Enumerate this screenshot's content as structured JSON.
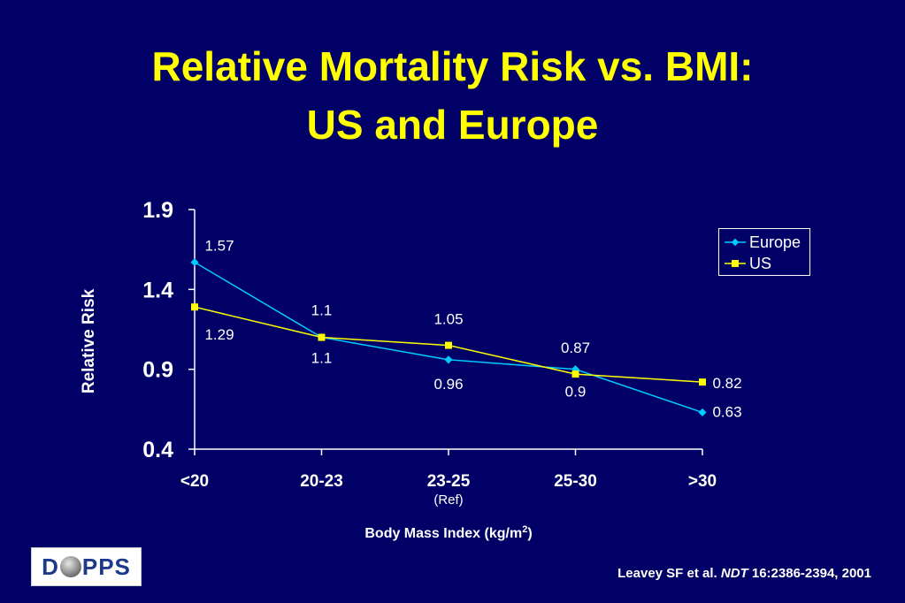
{
  "title": {
    "line1": "Relative Mortality Risk vs. BMI:",
    "line2": "US and Europe"
  },
  "chart_data": {
    "type": "line",
    "categories": [
      "<20",
      "20-23",
      "23-25",
      "25-30",
      ">30"
    ],
    "category_sublabels": [
      "",
      "",
      "(Ref)",
      "",
      ""
    ],
    "series": [
      {
        "name": "Europe",
        "values": [
          1.57,
          1.1,
          0.96,
          0.9,
          0.63
        ],
        "color": "#00ccff",
        "marker": "diamond"
      },
      {
        "name": "US",
        "values": [
          1.29,
          1.1,
          1.05,
          0.87,
          0.82
        ],
        "color": "#ffff00",
        "marker": "square"
      }
    ],
    "data_labels": {
      "Europe": [
        "1.57",
        "1.1",
        "0.96",
        "0.9",
        "0.63"
      ],
      "US": [
        "1.29",
        "1.1",
        "1.05",
        "0.87",
        "0.82"
      ]
    },
    "xlabel": "Body Mass Index (kg/m",
    "xlabel_superscript": "2",
    "xlabel_suffix": ")",
    "ylabel": "Relative Risk",
    "ylim": [
      0.4,
      1.9
    ],
    "yticks": [
      "0.4",
      "0.9",
      "1.4",
      "1.9"
    ],
    "grid": false,
    "legend_position": "top-right"
  },
  "logo": {
    "left": "D",
    "right": "PPS"
  },
  "citation": {
    "authors": "Leavey SF et al.",
    "journal": "NDT",
    "ref": "16:2386-2394, 2001"
  }
}
